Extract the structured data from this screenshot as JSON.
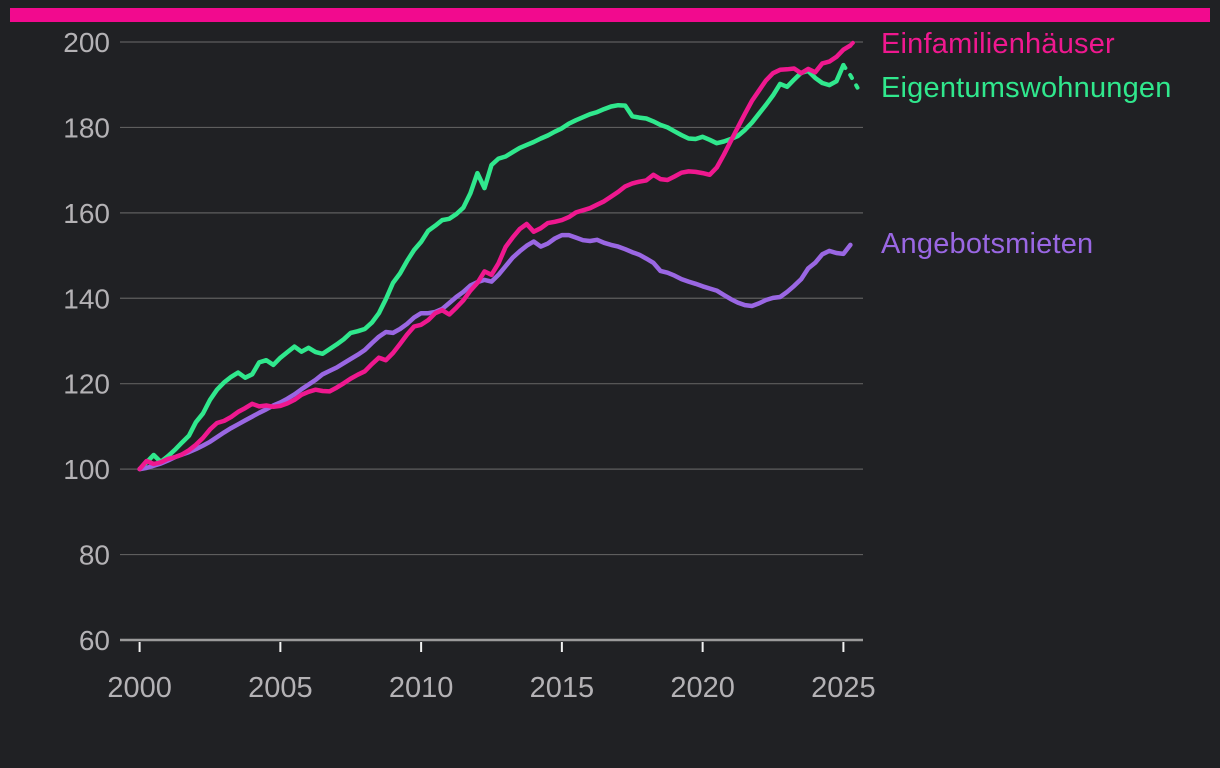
{
  "theme": {
    "background": "#202124",
    "accent_bar": "#f20a8e",
    "grid_color": "#5e5e5e",
    "axis_line_color": "#9b9b9b",
    "tick_color": "#f2f2f2",
    "label_color": "#b4b2b5"
  },
  "chart_data": {
    "type": "line",
    "title": "",
    "xlabel": "",
    "ylabel": "",
    "grid": true,
    "legend_position": "right",
    "x_axis": {
      "ticks": [
        2000,
        2005,
        2010,
        2015,
        2020,
        2025
      ]
    },
    "y_axis": {
      "ticks": [
        60,
        80,
        100,
        120,
        140,
        160,
        180,
        200
      ],
      "range": [
        60,
        203
      ]
    },
    "series": [
      {
        "name": "Einfamilienhäuser",
        "color": "#ef188f",
        "start_year": 2000,
        "step_years": 0.25,
        "dashed_from_index": 101,
        "values": [
          100,
          101.9,
          101.2,
          101.6,
          102.4,
          102.8,
          103.4,
          104.4,
          105.7,
          107.3,
          109.3,
          110.8,
          111.3,
          112.2,
          113.4,
          114.3,
          115.3,
          114.7,
          114.9,
          114.6,
          114.8,
          115.4,
          116.2,
          117.4,
          118.1,
          118.6,
          118.3,
          118.2,
          119.1,
          120.1,
          121.2,
          122.1,
          122.9,
          124.6,
          126.1,
          125.5,
          127.2,
          129.3,
          131.5,
          133.4,
          133.8,
          134.9,
          136.5,
          137.2,
          136.2,
          137.8,
          139.5,
          141.8,
          143.6,
          146.3,
          145.5,
          148.2,
          152,
          154.2,
          156.2,
          157.4,
          155.6,
          156.4,
          157.6,
          157.9,
          158.3,
          159,
          160.1,
          160.6,
          161.1,
          161.9,
          162.7,
          163.8,
          164.9,
          166.2,
          166.9,
          167.3,
          167.6,
          168.9,
          167.9,
          167.7,
          168.5,
          169.4,
          169.7,
          169.6,
          169.3,
          168.9,
          170.6,
          173.6,
          176.8,
          180,
          183.2,
          186.2,
          188.6,
          191,
          192.7,
          193.5,
          193.6,
          193.8,
          192.7,
          193.7,
          192.9,
          195,
          195.4,
          196.5,
          198.2,
          199.2,
          200.9
        ]
      },
      {
        "name": "Eigentumswohnungen",
        "color": "#30e88d",
        "start_year": 2000,
        "step_years": 0.25,
        "dashed_from_index": 100,
        "values": [
          100,
          101.6,
          103.3,
          101.7,
          103,
          104.5,
          106.2,
          107.8,
          111,
          113,
          116.2,
          118.6,
          120.3,
          121.6,
          122.6,
          121.4,
          122.2,
          125,
          125.5,
          124.4,
          126.1,
          127.4,
          128.7,
          127.5,
          128.4,
          127.4,
          127,
          128.1,
          129.2,
          130.4,
          131.9,
          132.3,
          132.8,
          134.3,
          136.5,
          139.8,
          143.6,
          145.8,
          148.7,
          151.3,
          153.2,
          155.8,
          157,
          158.3,
          158.6,
          159.7,
          161.2,
          164.6,
          169.3,
          165.8,
          171.2,
          172.7,
          173.2,
          174.2,
          175.2,
          175.9,
          176.6,
          177.4,
          178.1,
          179,
          179.8,
          180.9,
          181.7,
          182.4,
          183.1,
          183.6,
          184.3,
          184.9,
          185.2,
          185.1,
          182.6,
          182.3,
          182.1,
          181.4,
          180.6,
          180,
          179.1,
          178.2,
          177.4,
          177.3,
          177.8,
          177.1,
          176.3,
          176.7,
          177.3,
          178,
          179.4,
          181.1,
          183.2,
          185.3,
          187.5,
          190.2,
          189.5,
          191.2,
          192.8,
          193.2,
          191.6,
          190.4,
          189.9,
          190.8,
          194.6,
          192.2,
          189.3
        ]
      },
      {
        "name": "Angebotsmieten",
        "color": "#9a67e3",
        "start_year": 2000,
        "step_years": 0.25,
        "dashed_from_index": null,
        "values": [
          100,
          100.3,
          100.8,
          101.3,
          102,
          102.8,
          103.4,
          104,
          104.7,
          105.5,
          106.4,
          107.5,
          108.6,
          109.6,
          110.5,
          111.4,
          112.3,
          113.2,
          114,
          114.9,
          115.6,
          116.5,
          117.5,
          118.7,
          119.8,
          120.9,
          122.2,
          123,
          123.8,
          124.8,
          125.8,
          126.8,
          127.9,
          129.5,
          131,
          132.1,
          131.9,
          132.8,
          134,
          135.5,
          136.5,
          136.5,
          136.8,
          137.5,
          138.9,
          140.3,
          141.5,
          143,
          143.8,
          144.3,
          143.9,
          145.5,
          147.5,
          149.5,
          151,
          152.3,
          153.3,
          152.1,
          152.8,
          154,
          154.8,
          154.8,
          154.2,
          153.6,
          153.4,
          153.7,
          153,
          152.5,
          152.1,
          151.5,
          150.8,
          150.2,
          149.3,
          148.3,
          146.4,
          146,
          145.3,
          144.5,
          143.9,
          143.4,
          142.8,
          142.3,
          141.8,
          140.8,
          139.8,
          139,
          138.4,
          138.2,
          138.8,
          139.6,
          140.1,
          140.3,
          141.5,
          142.9,
          144.5,
          147,
          148.3,
          150.3,
          151.1,
          150.6,
          150.4,
          152.5
        ]
      }
    ]
  }
}
